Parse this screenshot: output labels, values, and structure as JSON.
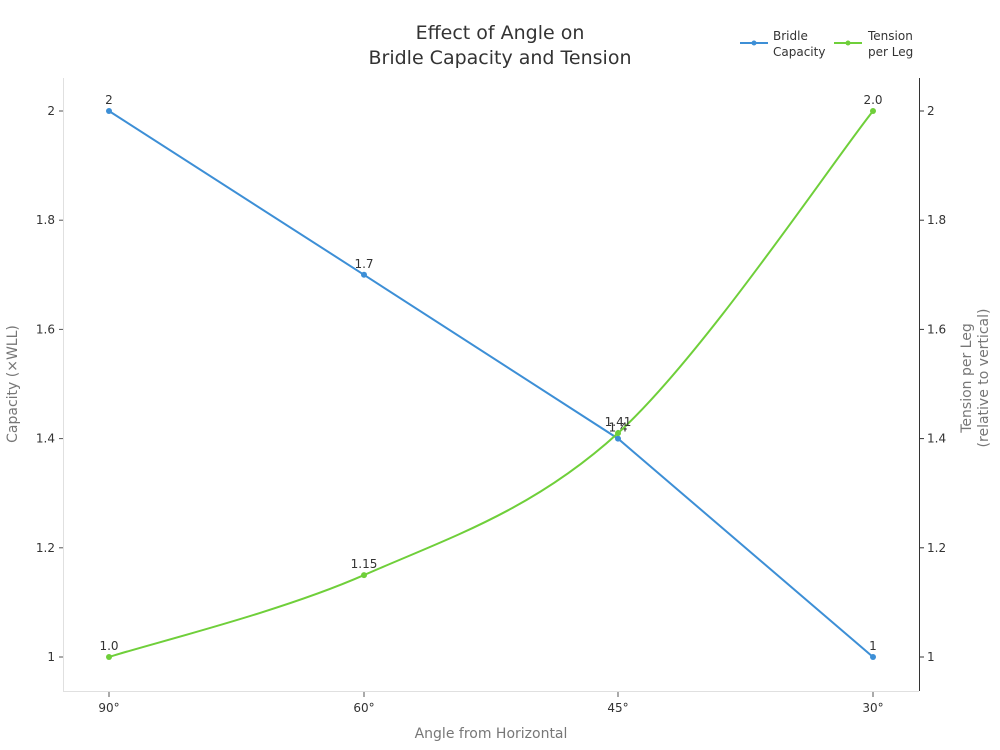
{
  "chart_data": {
    "type": "line",
    "title": [
      "Effect of Angle on",
      "Bridle Capacity and Tension"
    ],
    "xlabel": "Angle from Horizontal",
    "ylabel_left": "Capacity (×WLL)",
    "ylabel_right": [
      "Tension per Leg",
      "(relative to vertical)"
    ],
    "categories": [
      "90°",
      "60°",
      "45°",
      "30°"
    ],
    "ylim": [
      0.94,
      2.06
    ],
    "yticks_left": [
      "1",
      "1.2",
      "1.4",
      "1.6",
      "1.8",
      "2"
    ],
    "yticks_right": [
      "1",
      "1.2",
      "1.4",
      "1.6",
      "1.8",
      "2"
    ],
    "ytick_values": [
      1,
      1.2,
      1.4,
      1.6,
      1.8,
      2
    ],
    "grid": false,
    "legend_position": "top-right",
    "series": [
      {
        "name": "Bridle Capacity",
        "legend_label": [
          "Bridle",
          "Capacity"
        ],
        "axis": "left",
        "color": "#3d8fd6",
        "values": [
          2,
          1.7,
          1.4,
          1
        ],
        "labels": [
          "2",
          "1.7",
          "1.4",
          "1"
        ]
      },
      {
        "name": "Tension per Leg",
        "legend_label": [
          "Tension",
          "per Leg"
        ],
        "axis": "right",
        "color": "#6fcf3a",
        "values": [
          1.0,
          1.15,
          1.41,
          2.0
        ],
        "labels": [
          "1.0",
          "1.15",
          "1.41",
          "2.0"
        ]
      }
    ]
  }
}
